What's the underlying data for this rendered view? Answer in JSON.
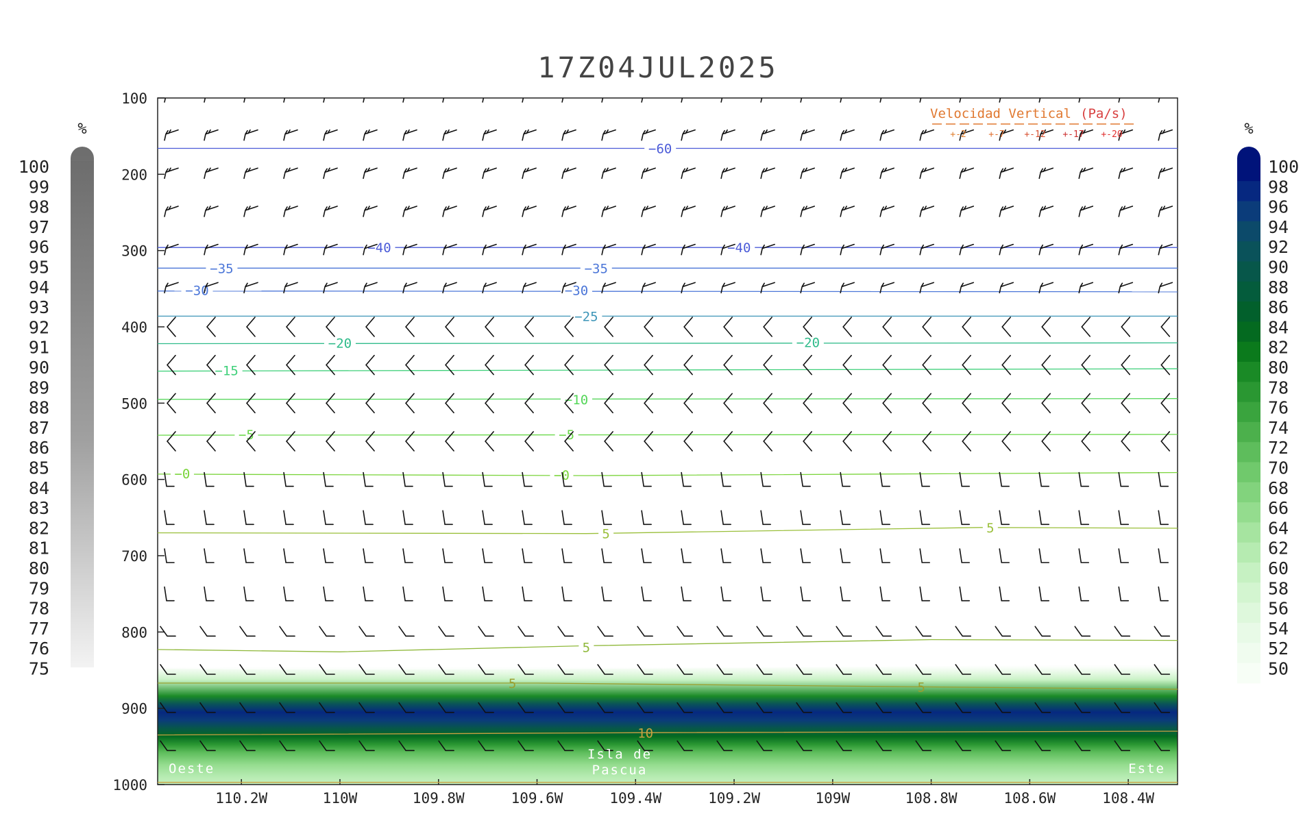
{
  "chart_data": {
    "type": "cross-section",
    "title": "17Z04JUL2025",
    "y_axis": {
      "ticks": [
        "100",
        "200",
        "300",
        "400",
        "500",
        "600",
        "700",
        "800",
        "900",
        "1000"
      ],
      "ylim": [
        100,
        1000
      ],
      "reversed": true
    },
    "x_axis": {
      "ticks": [
        "110.2W",
        "110W",
        "109.8W",
        "109.6W",
        "109.4W",
        "109.2W",
        "109W",
        "108.8W",
        "108.6W",
        "108.4W"
      ],
      "tick_values": [
        -110.2,
        -110.0,
        -109.8,
        -109.6,
        -109.4,
        -109.2,
        -109.0,
        -108.8,
        -108.6,
        -108.4
      ],
      "xlim": [
        -110.37,
        -108.3
      ]
    },
    "location_labels": {
      "west": "Oeste",
      "center": [
        "Isla de",
        "Pascua"
      ],
      "east": "Este"
    },
    "temperature_contours": [
      {
        "label": "-60",
        "color": "#4b5bd8",
        "pts": [
          [
            -110.37,
            166
          ],
          [
            -108.3,
            166
          ]
        ],
        "labels": [
          [
            -109.35,
            166
          ]
        ]
      },
      {
        "label": "-40",
        "color": "#4b5bd8",
        "pts": [
          [
            -110.37,
            296
          ],
          [
            -108.3,
            296
          ]
        ],
        "labels": [
          [
            -109.92,
            296
          ],
          [
            -109.19,
            296
          ]
        ]
      },
      {
        "label": "-35",
        "color": "#4b76d8",
        "pts": [
          [
            -110.37,
            323
          ],
          [
            -108.3,
            323
          ]
        ],
        "labels": [
          [
            -110.24,
            323
          ],
          [
            -109.48,
            323
          ]
        ]
      },
      {
        "label": "-30",
        "color": "#4b76d8",
        "pts": [
          [
            -110.37,
            353
          ],
          [
            -108.3,
            354
          ]
        ],
        "labels": [
          [
            -110.29,
            352
          ],
          [
            -109.52,
            352
          ]
        ]
      },
      {
        "label": "-25",
        "color": "#3e96b8",
        "pts": [
          [
            -110.37,
            386
          ],
          [
            -108.3,
            386
          ]
        ],
        "labels": [
          [
            -109.5,
            386
          ]
        ]
      },
      {
        "label": "-20",
        "color": "#2fbb8a",
        "pts": [
          [
            -110.37,
            422
          ],
          [
            -108.3,
            421
          ]
        ],
        "labels": [
          [
            -110.0,
            421
          ],
          [
            -109.05,
            420
          ]
        ]
      },
      {
        "label": "-15",
        "color": "#3fd07a",
        "pts": [
          [
            -110.37,
            458
          ],
          [
            -108.3,
            455
          ]
        ],
        "labels": [
          [
            -110.23,
            457
          ]
        ]
      },
      {
        "label": "-10",
        "color": "#55d65a",
        "pts": [
          [
            -110.37,
            495
          ],
          [
            -108.3,
            494
          ]
        ],
        "labels": [
          [
            -109.52,
            495
          ]
        ]
      },
      {
        "label": "-5",
        "color": "#6ad84a",
        "pts": [
          [
            -110.37,
            542
          ],
          [
            -108.3,
            541
          ]
        ],
        "labels": [
          [
            -110.19,
            541
          ],
          [
            -109.54,
            541
          ]
        ]
      },
      {
        "label": "-0",
        "color": "#7ad43a",
        "pts": [
          [
            -110.37,
            593
          ],
          [
            -109.5,
            595
          ],
          [
            -108.3,
            591
          ]
        ],
        "labels": [
          [
            -110.32,
            592
          ],
          [
            -109.55,
            594
          ]
        ]
      },
      {
        "label": "5",
        "color": "#9abf3a",
        "pts": [
          [
            -110.37,
            670
          ],
          [
            -109.5,
            671
          ],
          [
            -108.7,
            663
          ],
          [
            -108.3,
            664
          ]
        ],
        "labels": [
          [
            -109.46,
            671
          ],
          [
            -108.68,
            663
          ]
        ]
      },
      {
        "label": "5",
        "color": "#8fb83a",
        "pts": [
          [
            -110.37,
            823
          ],
          [
            -110.0,
            826
          ],
          [
            -109.5,
            818
          ],
          [
            -108.8,
            810
          ],
          [
            -108.3,
            811
          ]
        ],
        "labels": [
          [
            -109.5,
            820
          ]
        ]
      },
      {
        "label": "5",
        "color": "#9aa030",
        "pts": [
          [
            -110.37,
            867
          ],
          [
            -109.6,
            867
          ],
          [
            -108.8,
            872
          ],
          [
            -108.3,
            875
          ]
        ],
        "labels": [
          [
            -109.65,
            867
          ],
          [
            -108.82,
            872
          ]
        ]
      },
      {
        "label": "10",
        "color": "#c8a040",
        "pts": [
          [
            -110.37,
            935
          ],
          [
            -109.4,
            932
          ],
          [
            -108.3,
            930
          ]
        ],
        "labels": [
          [
            -109.38,
            932
          ]
        ]
      },
      {
        "label": "",
        "color": "#c8a040",
        "pts": [
          [
            -110.37,
            997
          ],
          [
            -108.3,
            997
          ]
        ],
        "labels": []
      }
    ],
    "humidity_shading": {
      "levels": [
        850,
        870,
        890,
        900,
        910,
        920,
        930,
        940,
        950,
        960,
        975,
        990,
        1000
      ],
      "values": [
        52,
        60,
        80,
        92,
        98,
        96,
        90,
        84,
        78,
        72,
        66,
        62,
        60
      ]
    },
    "wind_barbs": {
      "grid_x_count": 26,
      "levels": [
        100,
        150,
        200,
        250,
        300,
        350,
        400,
        450,
        500,
        550,
        600,
        650,
        700,
        750,
        800,
        850,
        900,
        950
      ]
    },
    "legend_left": {
      "unit": "%",
      "labels": [
        "100",
        "99",
        "98",
        "97",
        "96",
        "95",
        "94",
        "93",
        "92",
        "91",
        "90",
        "89",
        "88",
        "87",
        "86",
        "85",
        "84",
        "83",
        "82",
        "81",
        "80",
        "79",
        "78",
        "77",
        "76",
        "75"
      ]
    },
    "legend_right": {
      "unit": "%",
      "labels": [
        "100",
        "98",
        "96",
        "94",
        "92",
        "90",
        "88",
        "86",
        "84",
        "82",
        "80",
        "78",
        "76",
        "74",
        "72",
        "70",
        "68",
        "66",
        "64",
        "62",
        "60",
        "58",
        "56",
        "54",
        "52",
        "50"
      ],
      "colors": [
        "#00137a",
        "#062880",
        "#0b3c7a",
        "#0c4a6a",
        "#0a525a",
        "#07574a",
        "#045c3c",
        "#02602c",
        "#046a20",
        "#0b7a1c",
        "#1a8a26",
        "#2a9732",
        "#3aa43e",
        "#4cb04c",
        "#5ebd5c",
        "#70c96c",
        "#82d37d",
        "#94dc8e",
        "#a6e4a0",
        "#b6ebb1",
        "#c6f1c2",
        "#d3f5d0",
        "#def8dc",
        "#e8fae7",
        "#f0fcef",
        "#f7fef6"
      ]
    },
    "vertical_velocity_legend": {
      "title": "Velocidad Vertical",
      "unit": "(Pa/s)",
      "values": [
        "+-2",
        "+-7",
        "+-12",
        "+-17",
        "+-20"
      ],
      "colors": [
        "#e08030",
        "#e07030",
        "#d85030",
        "#cc3030",
        "#e03030"
      ]
    }
  }
}
